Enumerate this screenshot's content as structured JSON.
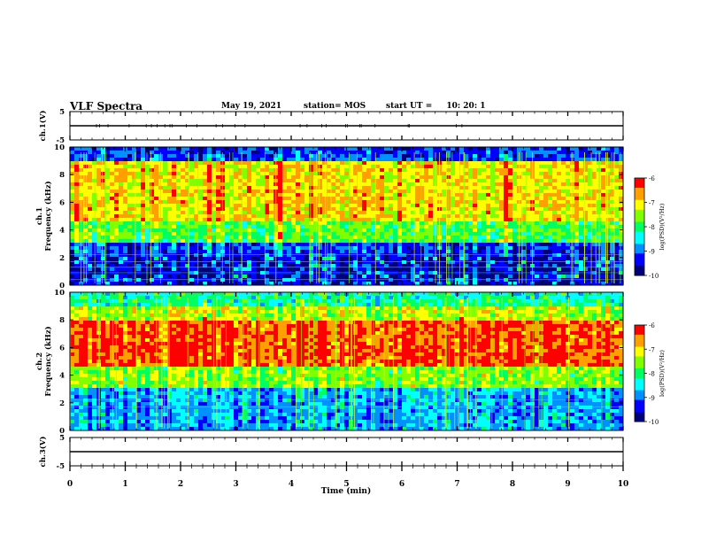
{
  "header": {
    "title": "VLF Spectra",
    "date": "May 19, 2021",
    "station": "station= MOS",
    "start_label": "start  UT  =",
    "start_value": "10: 20: 1"
  },
  "colors": {
    "colormap": [
      "#00007a",
      "#0000ff",
      "#0090ff",
      "#00ffff",
      "#00ff60",
      "#80ff00",
      "#ffff00",
      "#ffa000",
      "#ff0000",
      "#ffffff"
    ],
    "trace": "#000000",
    "frame": "#000000"
  },
  "chart_data": [
    {
      "type": "line",
      "panel": "ch1-waveform",
      "ylabel": "ch.1(V)",
      "ylim": [
        -5,
        5
      ],
      "yticks": [
        "5",
        "-5"
      ],
      "xlim": [
        0,
        10
      ],
      "description_values": {
        "x": [
          0,
          10
        ],
        "y": [
          0,
          0
        ]
      }
    },
    {
      "type": "heatmap",
      "panel": "ch1-spectrogram",
      "ylabel": "ch.1\nFrequency (kHz)",
      "ylim": [
        0,
        10
      ],
      "yticks": [
        "0",
        "2",
        "4",
        "6",
        "8",
        "10"
      ],
      "xlim": [
        0,
        10
      ],
      "bands": [
        {
          "f_from": 0,
          "f_to": 2,
          "level": 0.12
        },
        {
          "f_from": 2,
          "f_to": 3,
          "level": 0.2
        },
        {
          "f_from": 3,
          "f_to": 4.5,
          "level": 0.55
        },
        {
          "f_from": 4.5,
          "f_to": 9.0,
          "level": 0.75
        },
        {
          "f_from": 9.0,
          "f_to": 10,
          "level": 0.2
        }
      ],
      "colorbar": {
        "label": "log(PSD)(V²/Hz)",
        "ticks": [
          "-6",
          "-7",
          "-8",
          "-9",
          "-10"
        ],
        "range": [
          -10,
          -6
        ]
      }
    },
    {
      "type": "heatmap",
      "panel": "ch2-spectrogram",
      "ylabel": "ch.2\nFrequency (kHz)",
      "ylim": [
        0,
        10
      ],
      "yticks": [
        "0",
        "2",
        "4",
        "6",
        "8",
        "10"
      ],
      "xlim": [
        0,
        10
      ],
      "bands": [
        {
          "f_from": 0,
          "f_to": 3,
          "level": 0.3
        },
        {
          "f_from": 3,
          "f_to": 4.5,
          "level": 0.6
        },
        {
          "f_from": 4.5,
          "f_to": 8.0,
          "level": 0.9
        },
        {
          "f_from": 8.0,
          "f_to": 9.0,
          "level": 0.65
        },
        {
          "f_from": 9.0,
          "f_to": 10,
          "level": 0.45
        }
      ],
      "colorbar": {
        "label": "log(PSD)(V²/Hz)",
        "ticks": [
          "-6",
          "-7",
          "-8",
          "-9",
          "-10"
        ],
        "range": [
          -10,
          -6
        ]
      }
    },
    {
      "type": "line",
      "panel": "ch3-waveform",
      "ylabel": "ch.3(V)",
      "ylim": [
        -5,
        5
      ],
      "yticks": [
        "5",
        "-5"
      ],
      "xlim": [
        0,
        10
      ],
      "description_values": {
        "x": [
          0,
          10
        ],
        "y": [
          0,
          0
        ]
      }
    }
  ],
  "xaxis": {
    "label": "Time  (min)",
    "ticks": [
      "0",
      "1",
      "2",
      "3",
      "4",
      "5",
      "6",
      "7",
      "8",
      "9",
      "10"
    ]
  }
}
